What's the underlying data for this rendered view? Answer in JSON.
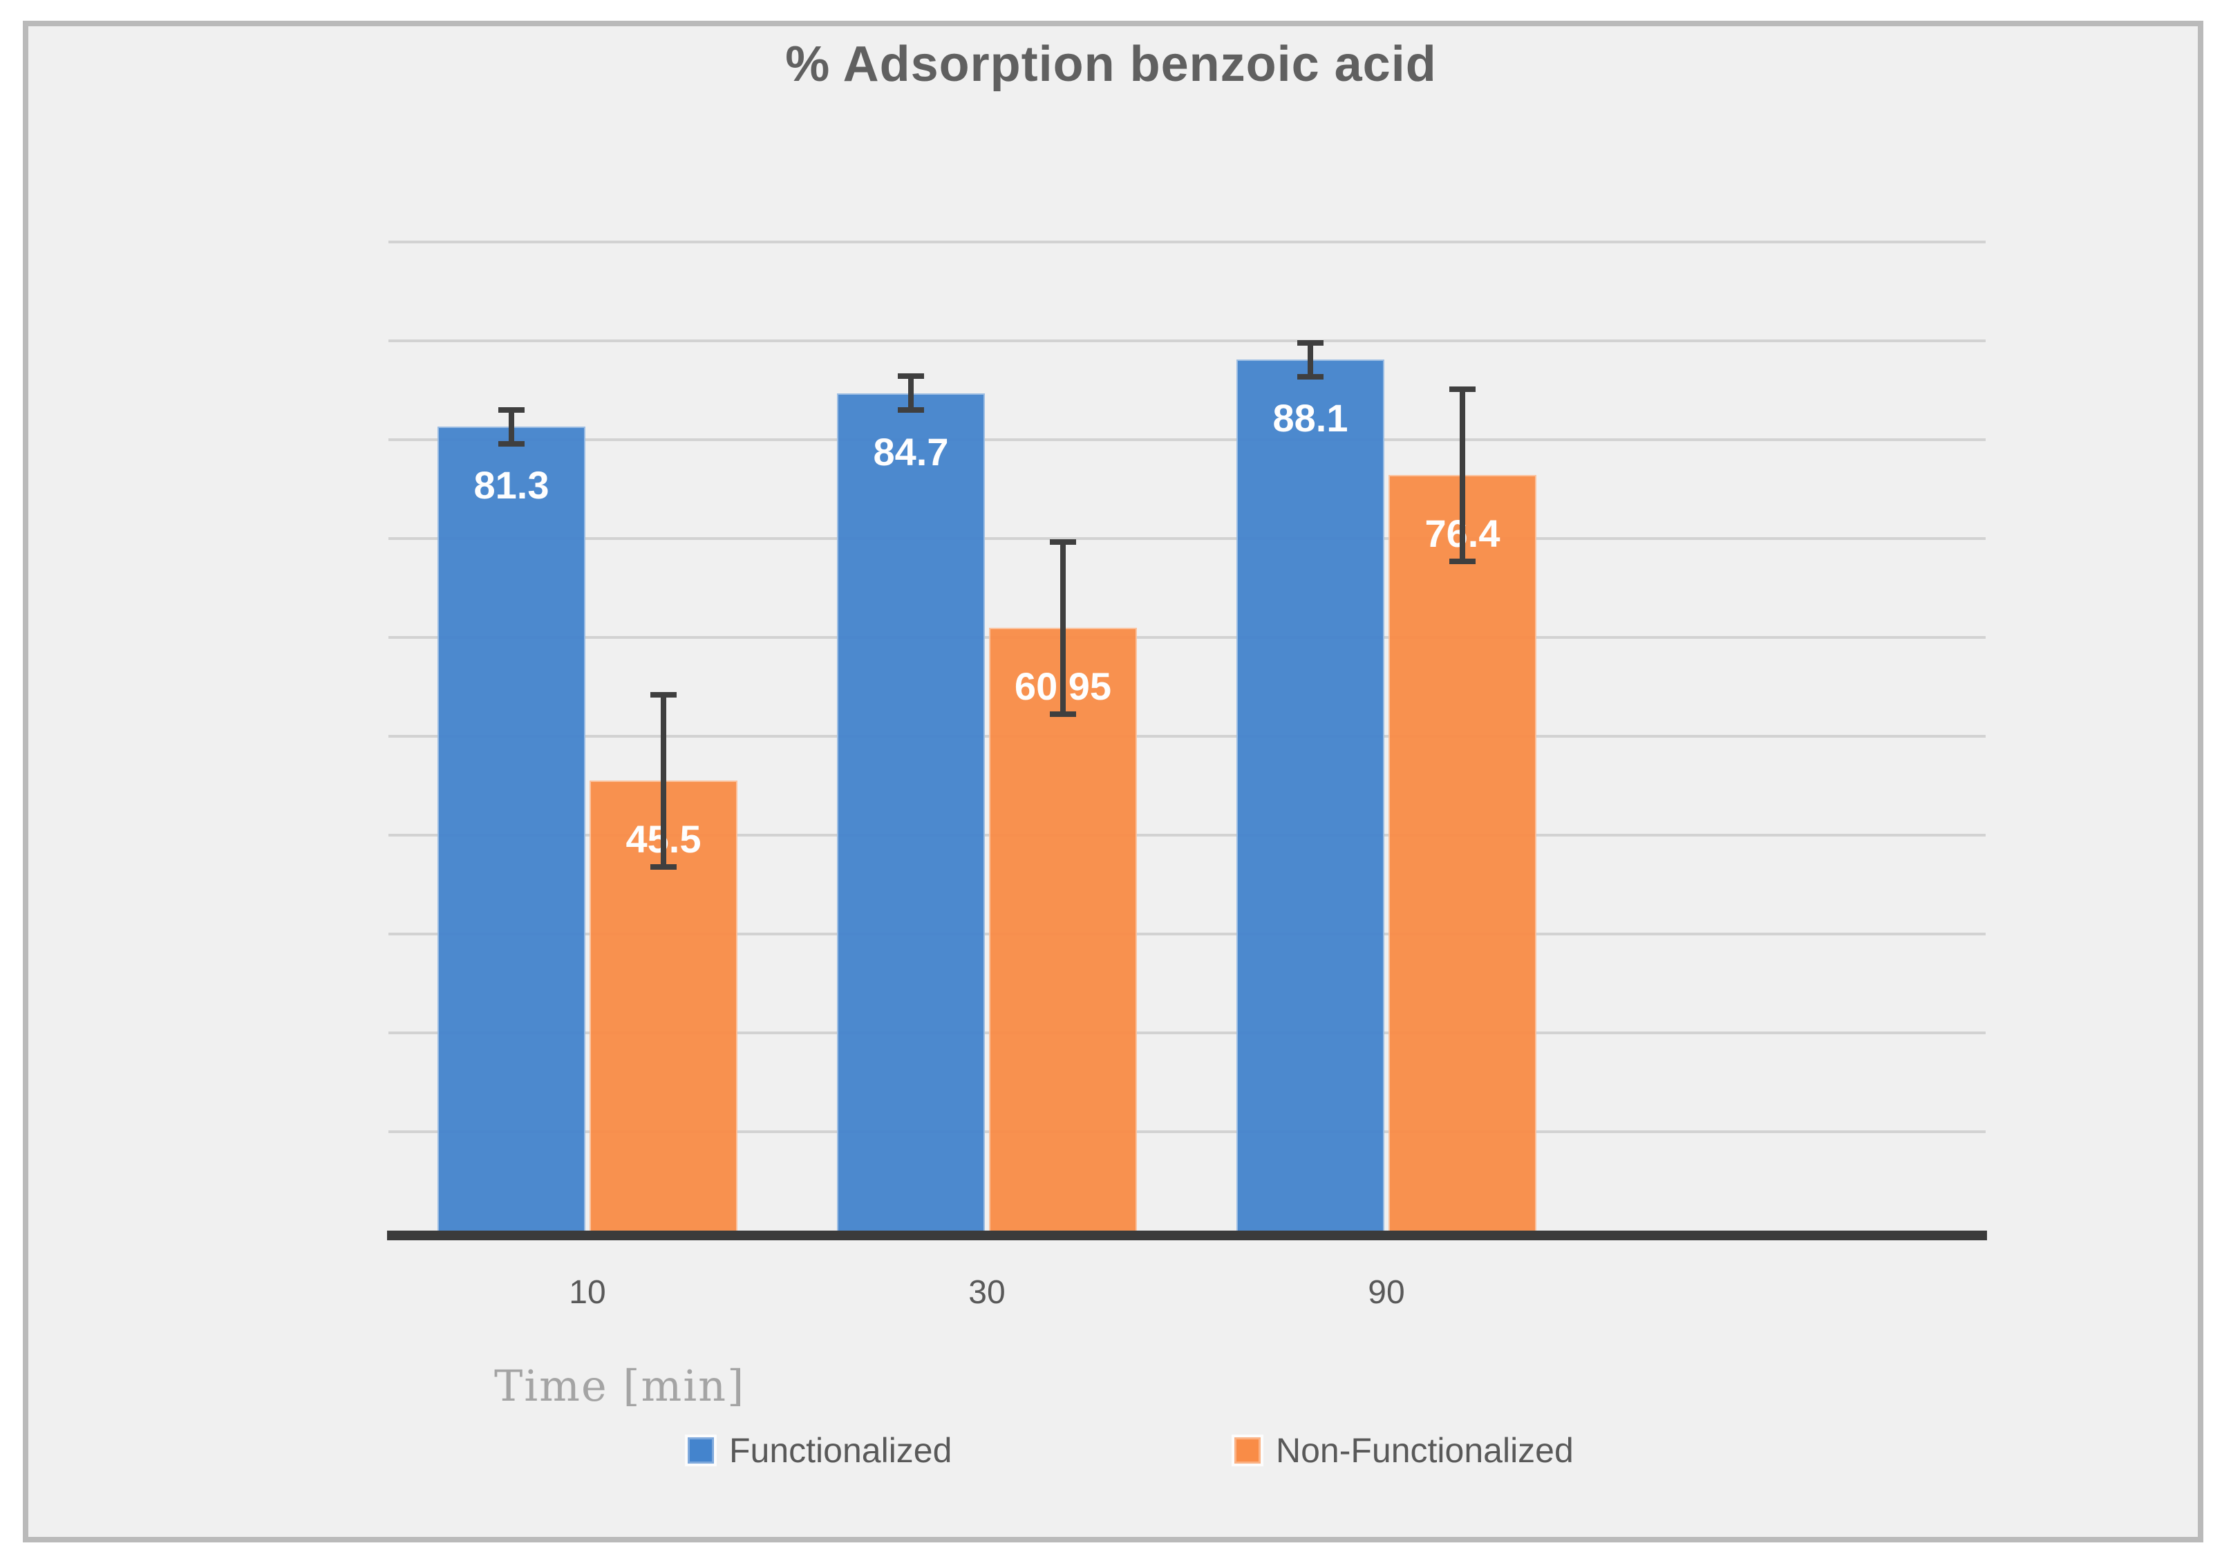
{
  "chart_data": {
    "type": "bar",
    "title": "% Adsorption benzoic acid",
    "xlabel": "Time [min]",
    "categories": [
      "10",
      "30",
      "90"
    ],
    "series": [
      {
        "name": "Functionalized",
        "color": "#4484CD",
        "border_color": "#7FA9DC",
        "values": [
          81.3,
          84.7,
          88.1
        ],
        "labels": [
          "81.3",
          "84.7",
          "88.1"
        ],
        "error": [
          2,
          2,
          2
        ]
      },
      {
        "name": "Non-Functionalized",
        "color": "#F98C47",
        "border_color": "#FBB183",
        "values": [
          45.5,
          60.95,
          76.4
        ],
        "labels": [
          "45.5",
          "60.95",
          "76.4"
        ],
        "error": [
          9,
          9,
          9
        ]
      }
    ],
    "ylim": [
      0,
      110
    ],
    "gridline_step": 10,
    "grid": true,
    "y_axis_labels_visible": false,
    "legend_position": "bottom",
    "colors": {
      "chart_background": "#F0F0F0",
      "frame_border": "#BABABA",
      "title_text": "#606060",
      "gridline": "#D2D2D2",
      "axis_line": "#3B3B3B",
      "tick_text": "#595959",
      "xlabel_text": "#A4A4A4",
      "legend_text": "#595959",
      "error_bar": "#3F3F3F",
      "data_label_text": "#FFFFFF"
    }
  }
}
